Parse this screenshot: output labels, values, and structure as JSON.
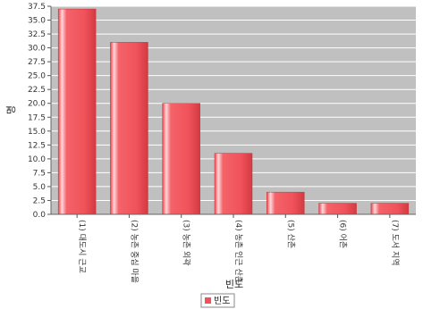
{
  "chart_data": {
    "type": "bar",
    "xlabel": "빈도",
    "ylabel": "명",
    "categories": [
      "(1) 대도시 근교",
      "(2) 농촌 중심 마을",
      "(3) 농촌 외곽",
      "(4) 농촌 인근 산촌",
      "(5) 산촌",
      "(6) 어촌",
      "(7) 도서 지역"
    ],
    "series": [
      {
        "name": "빈도",
        "values": [
          37,
          31,
          20,
          11,
          4,
          2,
          2
        ]
      }
    ],
    "ylim": [
      0,
      37.5
    ],
    "yticks": [
      0.0,
      2.5,
      5.0,
      7.5,
      10.0,
      12.5,
      15.0,
      17.5,
      20.0,
      22.5,
      25.0,
      27.5,
      30.0,
      32.5,
      35.0,
      37.5
    ],
    "grid": true,
    "legend_position": "bottom-center",
    "colors": {
      "bar": "#f0525a",
      "bar_highlight": "#ffd6d8",
      "bar_dark": "#c8323a",
      "plot_background": "#c0c0c0",
      "gridline": "#ffffff"
    }
  }
}
